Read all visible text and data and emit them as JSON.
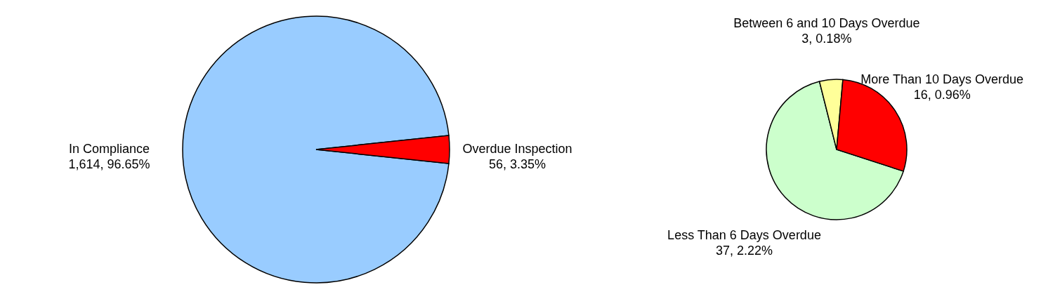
{
  "chart_data": [
    {
      "type": "pie",
      "categories": [
        "In Compliance",
        "Overdue Inspection"
      ],
      "values": [
        1614,
        56
      ],
      "colors": [
        "#99ccff",
        "#ff0000"
      ],
      "value_labels": [
        "1,614, 96.65%",
        "56, 3.35%"
      ]
    },
    {
      "type": "pie",
      "categories": [
        "Less Than 6 Days Overdue",
        "Between 6 and 10 Days Overdue",
        "More Than 10 Days Overdue"
      ],
      "values": [
        37,
        3,
        16
      ],
      "colors": [
        "#ccffcc",
        "#ffff99",
        "#ff0000"
      ],
      "value_labels": [
        "37, 2.22%",
        "3, 0.18%",
        "16, 0.96%"
      ]
    }
  ]
}
